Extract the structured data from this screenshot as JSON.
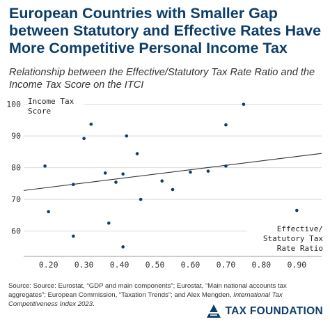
{
  "header": {
    "title": "European Countries with Smaller Gap between Statutory and Effective Rates Have More Competitive Personal Income Tax",
    "subtitle": "Relationship between the Effective/Statutory Tax Rate Ratio and the Income Tax Score on the ITCI"
  },
  "chart_data": {
    "type": "scatter",
    "xlabel": "Effective/ Statutory Tax Rate Ratio",
    "ylabel": "Income Tax Score",
    "xlim": [
      0.13,
      0.97
    ],
    "ylim": [
      52,
      103
    ],
    "x_ticks": [
      "0.20",
      "0.30",
      "0.40",
      "0.50",
      "0.60",
      "0.70",
      "0.80",
      "0.90"
    ],
    "y_ticks": [
      "60",
      "70",
      "80",
      "90",
      "100"
    ],
    "grid": "horizontal",
    "point_color": "#0d3e6a",
    "trendline": {
      "x": [
        0.13,
        0.97
      ],
      "y": [
        72.8,
        84.5
      ]
    },
    "points": [
      {
        "x": 0.19,
        "y": 80.5
      },
      {
        "x": 0.2,
        "y": 66.1
      },
      {
        "x": 0.27,
        "y": 74.7
      },
      {
        "x": 0.27,
        "y": 58.4
      },
      {
        "x": 0.3,
        "y": 89.2
      },
      {
        "x": 0.32,
        "y": 93.7
      },
      {
        "x": 0.36,
        "y": 78.3
      },
      {
        "x": 0.37,
        "y": 62.5
      },
      {
        "x": 0.39,
        "y": 75.4
      },
      {
        "x": 0.41,
        "y": 78.0
      },
      {
        "x": 0.41,
        "y": 55.0
      },
      {
        "x": 0.42,
        "y": 90.0
      },
      {
        "x": 0.45,
        "y": 84.4
      },
      {
        "x": 0.46,
        "y": 70.0
      },
      {
        "x": 0.52,
        "y": 75.8
      },
      {
        "x": 0.55,
        "y": 73.1
      },
      {
        "x": 0.6,
        "y": 78.6
      },
      {
        "x": 0.65,
        "y": 78.9
      },
      {
        "x": 0.7,
        "y": 80.5
      },
      {
        "x": 0.7,
        "y": 93.5
      },
      {
        "x": 0.75,
        "y": 100.0
      },
      {
        "x": 0.9,
        "y": 66.5
      }
    ]
  },
  "footer": {
    "source_prefix": "Source: Source: Eurostat, “GDP and main components”; Eurostat, “Main national accounts tax aggregates”; European Commission, “Taxation Trends”; and Alex Mengden, ",
    "source_italic": "International Tax Competitiveness Index 2023",
    "source_suffix": ".",
    "brand": "TAX FOUNDATION",
    "brand_icon": "tax-foundation-logo-icon"
  }
}
